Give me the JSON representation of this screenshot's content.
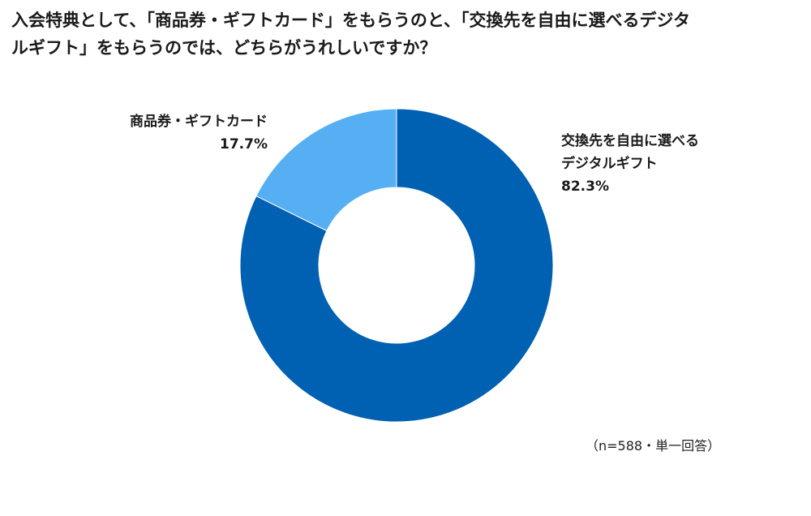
{
  "title_line1": "入会特典として、「商品券・ギフトカード」をもらうのと、「交換先を自由に選べるデジタ",
  "title_line2": "ルギフト」をもらうのでは、どちらがうれしいですか？",
  "footnote": "（n=588・単一回答）",
  "colors": {
    "digital_gift": "#0060B1",
    "gift_card": "#56AFF2",
    "text": "#1a1a1a"
  },
  "chart_data": {
    "type": "pie",
    "donut": true,
    "title": "入会特典として、「商品券・ギフトカード」をもらうのと、「交換先を自由に選べるデジタルギフト」をもらうのでは、どちらがうれしいですか？",
    "slices": [
      {
        "label_lines": [
          "交換先を自由に選べる",
          "デジタルギフト"
        ],
        "value": 82.3,
        "value_label": "82.3%",
        "color": "#0060B1"
      },
      {
        "label_lines": [
          "商品券・ギフトカード"
        ],
        "value": 17.7,
        "value_label": "17.7%",
        "color": "#56AFF2"
      }
    ],
    "start": "12 o'clock",
    "direction": "clockwise"
  }
}
